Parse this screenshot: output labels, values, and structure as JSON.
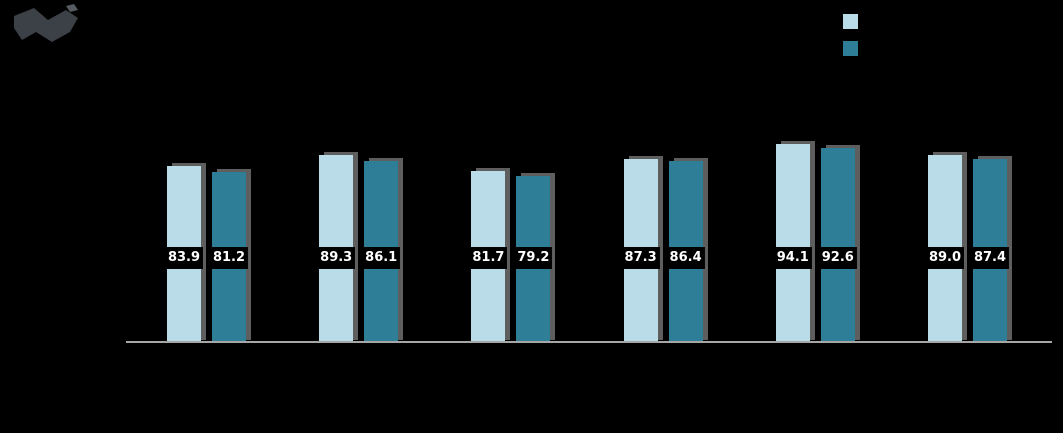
{
  "page": {
    "background": "#000000"
  },
  "logo": {
    "name": "logo-mark",
    "color_dark": "#3c4147",
    "color_light": "#565b61"
  },
  "legend": {
    "position": "top-right",
    "items": [
      {
        "label": "",
        "color": "#b9dce8"
      },
      {
        "label": "",
        "color": "#2e7e97"
      }
    ]
  },
  "chart_data": {
    "type": "bar",
    "title": "",
    "xlabel": "",
    "ylabel": "",
    "categories": [
      "",
      "",
      "",
      "",
      "",
      ""
    ],
    "series": [
      {
        "name": "",
        "color": "#b9dce8",
        "values": [
          83.9,
          89.3,
          81.7,
          87.3,
          94.1,
          89.0
        ]
      },
      {
        "name": "",
        "color": "#2e7e97",
        "values": [
          81.2,
          86.1,
          79.2,
          86.4,
          92.6,
          87.4
        ]
      }
    ],
    "value_labels": {
      "visible": true,
      "decimals": 1,
      "text_color": "#ffffff",
      "background": "#000000"
    },
    "ylim": [
      0,
      100
    ],
    "grid": false,
    "axis_line_color": "#a6a6a6",
    "legend_position": "top-right"
  }
}
